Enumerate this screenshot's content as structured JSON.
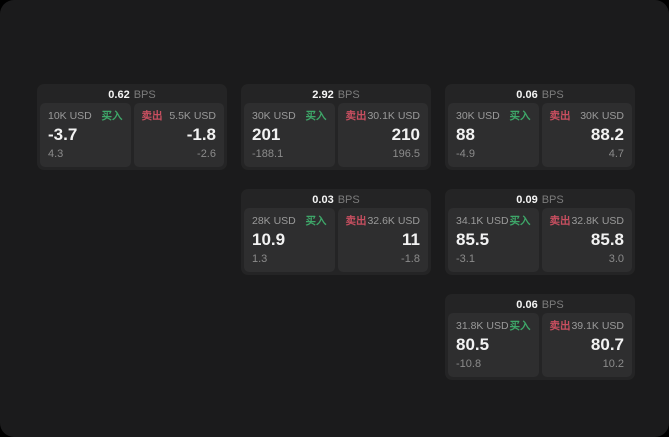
{
  "page": {
    "background": "#1b1b1c",
    "card_background": "#242425",
    "panel_background": "#2e2e2f"
  },
  "colors": {
    "buy_accent": "#3ea769",
    "sell_accent": "#c84f60",
    "text_primary": "#f5f5f5",
    "text_secondary": "#9a9a9a"
  },
  "labels": {
    "bps_unit": "BPS",
    "buy": "买入",
    "sell": "卖出"
  },
  "cards": [
    {
      "bps": "0.62",
      "buy": {
        "size": "10K USD",
        "price": "-3.7",
        "delta": "4.3"
      },
      "sell": {
        "size": "5.5K USD",
        "price": "-1.8",
        "delta": "-2.6"
      }
    },
    {
      "bps": "2.92",
      "buy": {
        "size": "30K USD",
        "price": "201",
        "delta": "-188.1"
      },
      "sell": {
        "size": "30.1K USD",
        "price": "210",
        "delta": "196.5"
      }
    },
    {
      "bps": "0.06",
      "buy": {
        "size": "30K USD",
        "price": "88",
        "delta": "-4.9"
      },
      "sell": {
        "size": "30K USD",
        "price": "88.2",
        "delta": "4.7"
      }
    },
    {
      "bps": "0.03",
      "buy": {
        "size": "28K USD",
        "price": "10.9",
        "delta": "1.3"
      },
      "sell": {
        "size": "32.6K USD",
        "price": "11",
        "delta": "-1.8"
      }
    },
    {
      "bps": "0.09",
      "buy": {
        "size": "34.1K USD",
        "price": "85.5",
        "delta": "-3.1"
      },
      "sell": {
        "size": "32.8K USD",
        "price": "85.8",
        "delta": "3.0"
      }
    },
    {
      "bps": "0.06",
      "buy": {
        "size": "31.8K USD",
        "price": "80.5",
        "delta": "-10.8"
      },
      "sell": {
        "size": "39.1K USD",
        "price": "80.7",
        "delta": "10.2"
      }
    }
  ]
}
